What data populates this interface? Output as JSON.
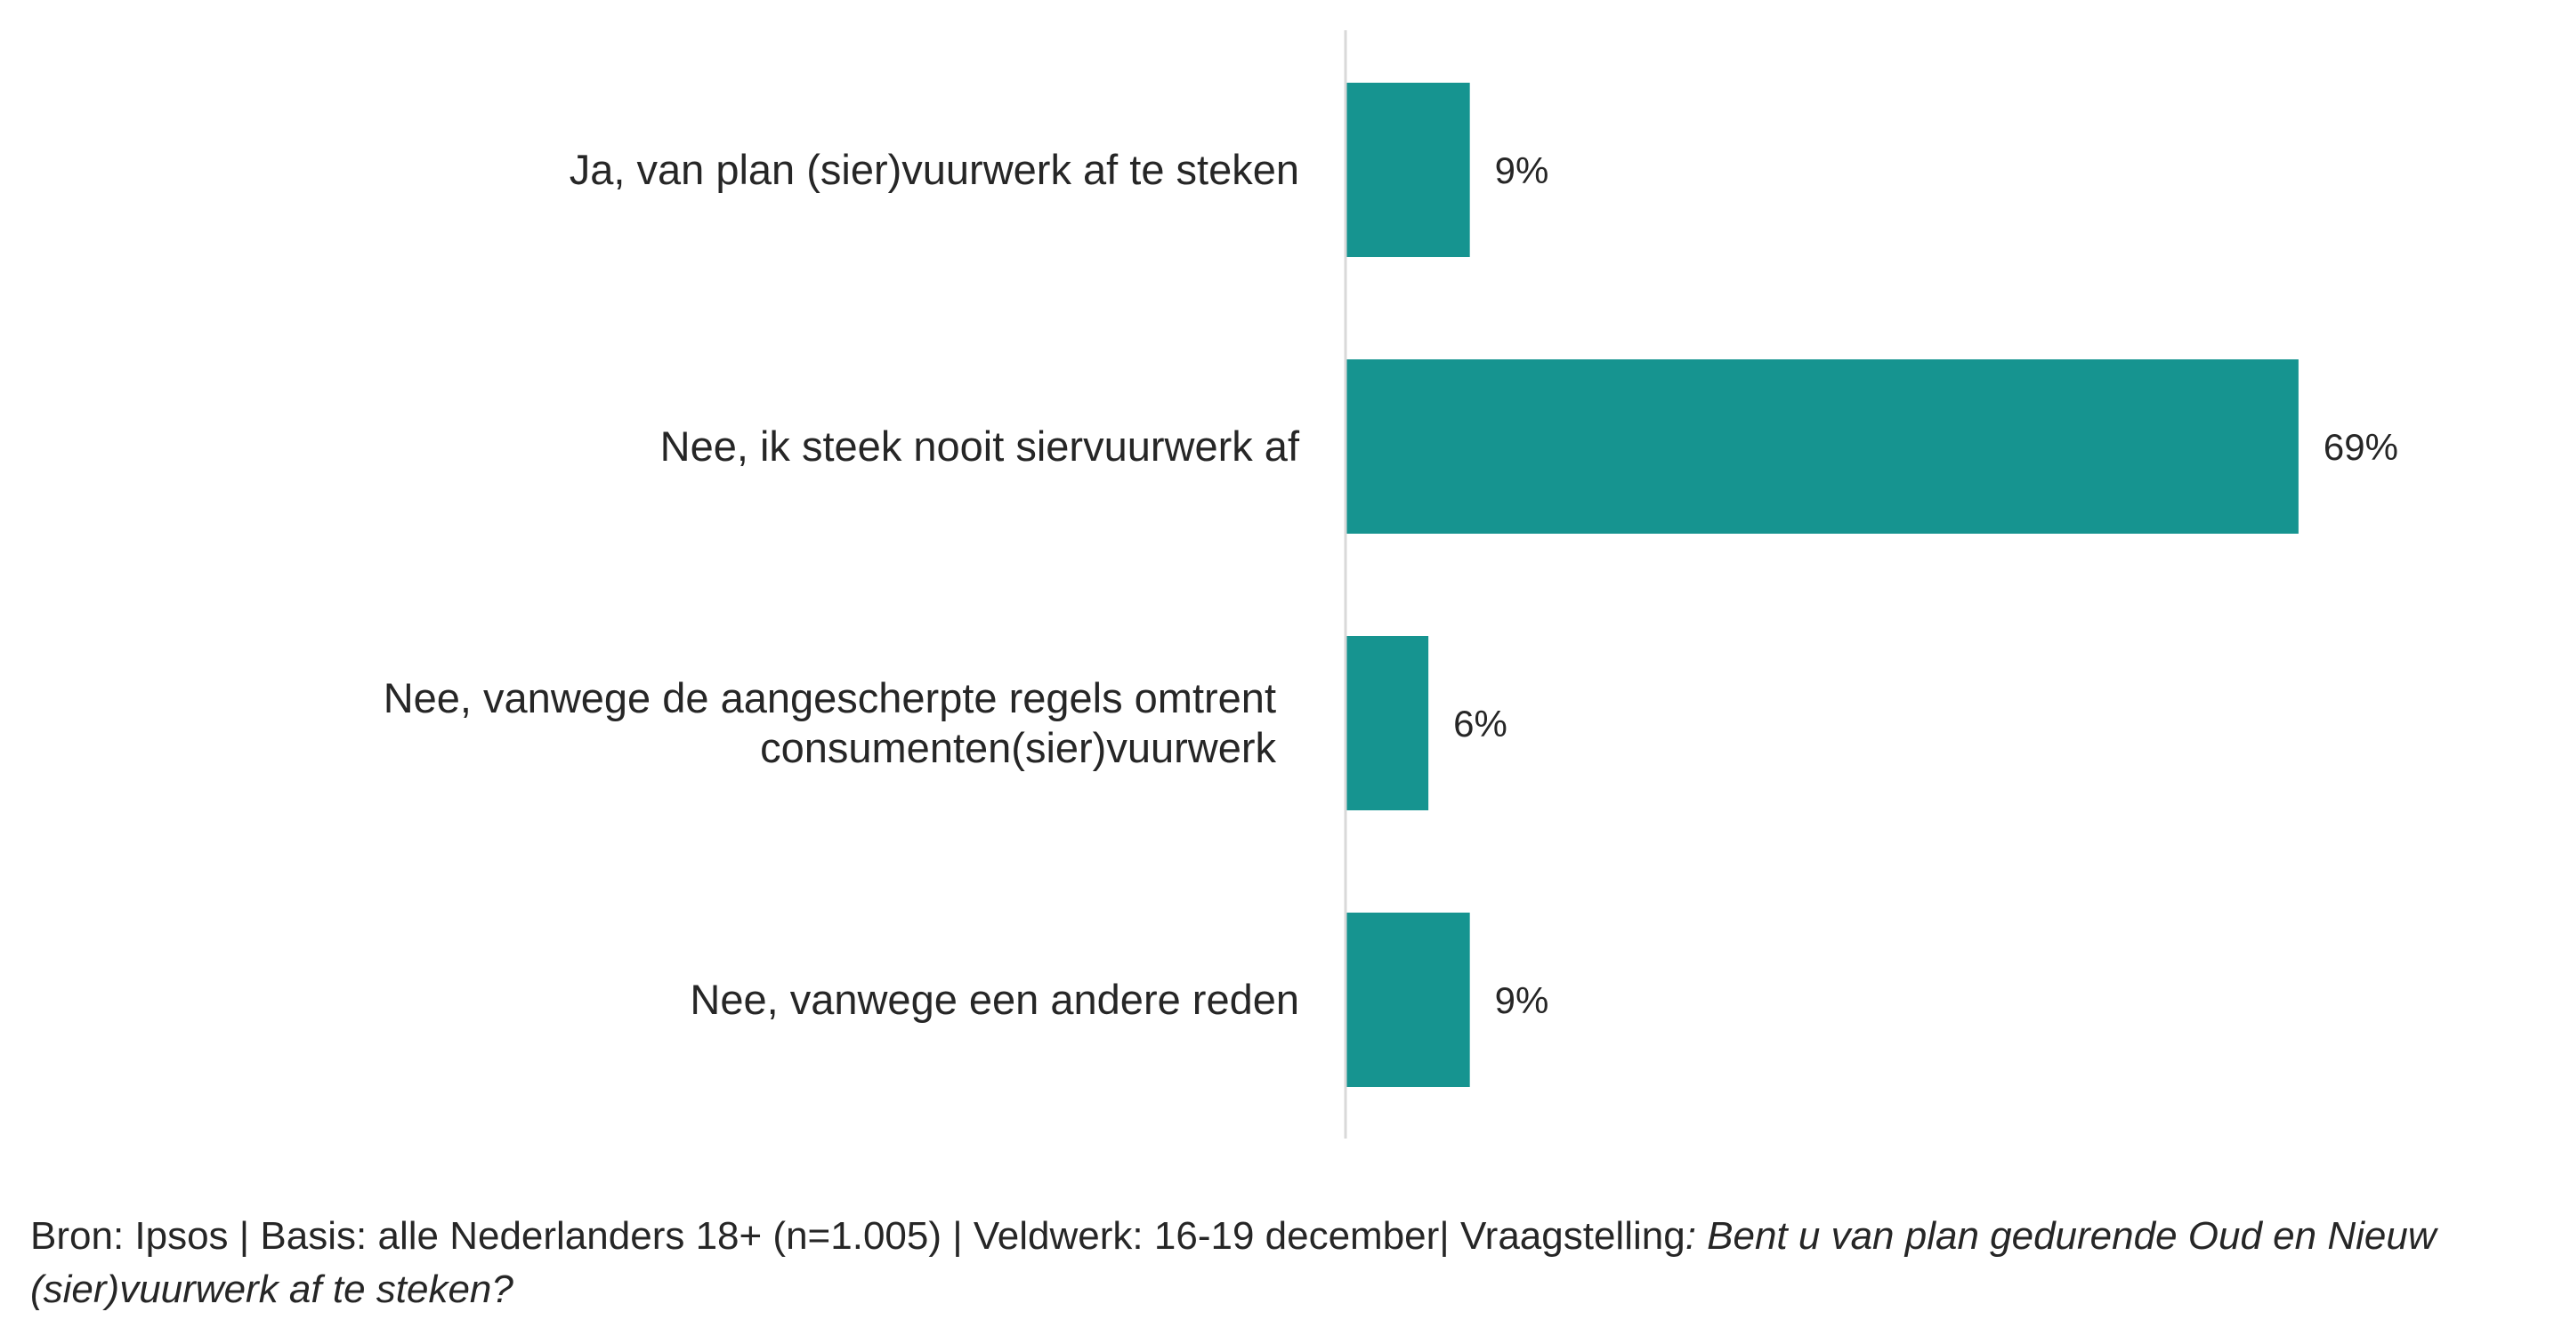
{
  "chart_data": {
    "type": "bar",
    "orientation": "horizontal",
    "categories": [
      [
        "Ja, van plan (sier)vuurwerk af te steken"
      ],
      [
        "Nee, ik steek nooit siervuurwerk af"
      ],
      [
        "Nee, vanwege de aangescherpte regels omtrent",
        "consumenten(sier)vuurwerk"
      ],
      [
        "Nee, vanwege een andere reden"
      ]
    ],
    "values": [
      9,
      69,
      6,
      9
    ],
    "value_labels": [
      "9%",
      "69%",
      "6%",
      "9%"
    ],
    "unit": "%",
    "bar_color": "#169490",
    "axis_color": "#d9d9d9",
    "grid": false,
    "legend": "none"
  },
  "footnote": {
    "text": "Bron: Ipsos | Basis: alle Nederlanders 18+ (n=1.005) | Veldwerk: 16-19 december| Vraagstelling",
    "question": ": Bent u van plan gedurende Oud en Nieuw (sier)vuurwerk af te steken?"
  }
}
